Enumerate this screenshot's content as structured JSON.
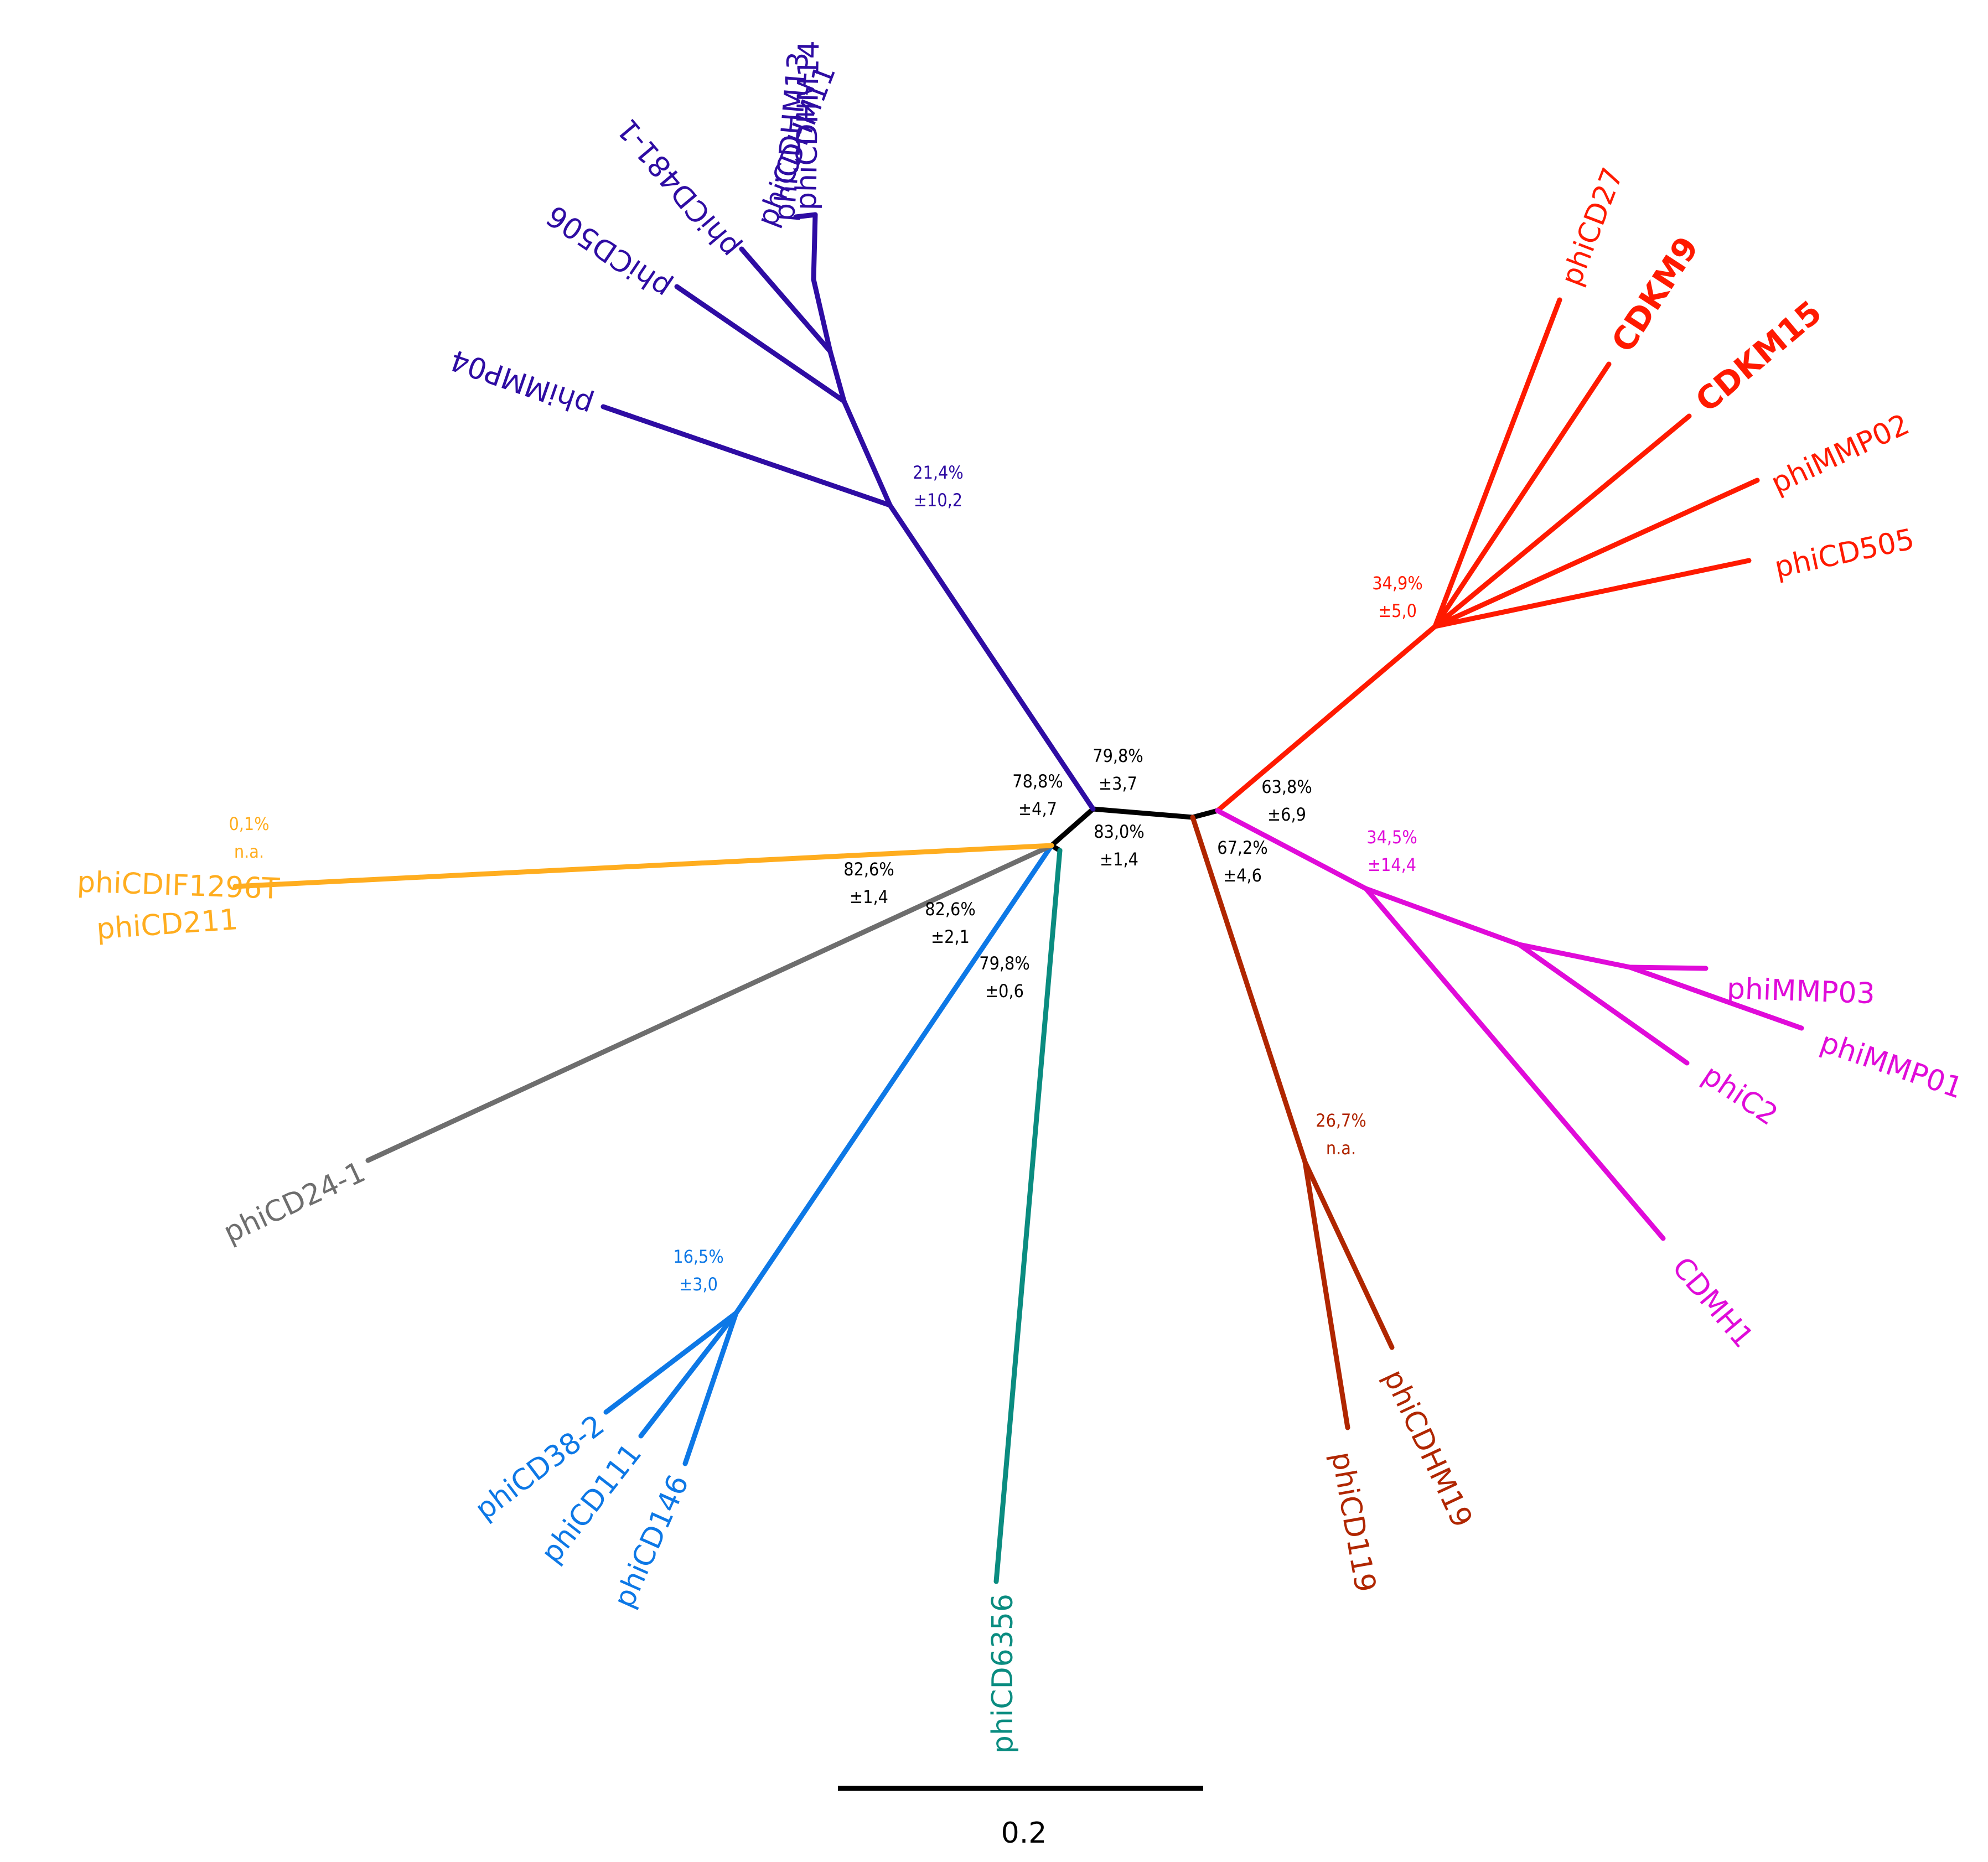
{
  "colors": {
    "backbone": "#000000",
    "purple": "#2e0ca3",
    "red": "#ff1a00",
    "magenta": "#e00bd9",
    "brown": "#b02600",
    "teal": "#0a8c80",
    "blue": "#0d78e6",
    "gray": "#6e6e6e",
    "orange": "#ffad1f"
  },
  "taxa": {
    "phiCDHM14": "phiCDHM14",
    "phiCDHM13": "phiCDHM13",
    "phiCDHM11": "phiCDHM11",
    "phiCD481_1": "phiCD481-1",
    "phiCD506": "phiCD506",
    "phiMMP04": "phiMMP04",
    "phiCD27": "phiCD27",
    "CDKM9": "CDKM9",
    "CDKM15": "CDKM15",
    "phiMMP02": "phiMMP02",
    "phiCD505": "phiCD505",
    "phiMMP03": "phiMMP03",
    "phiMMP01": "phiMMP01",
    "phiC2": "phiC2",
    "CDMH1": "CDMH1",
    "phiCDHM19": "phiCDHM19",
    "phiCD119": "phiCD119",
    "phiCD6356": "phiCD6356",
    "phiCD38_2": "phiCD38-2",
    "phiCD111": "phiCD111",
    "phiCD146": "phiCD146",
    "phiCD24_1": "phiCD24-1",
    "phiCDIF1296T": "phiCDIF1296T",
    "phiCD211": "phiCD211"
  },
  "annotations": {
    "purple": [
      "21,4%",
      "±10,2"
    ],
    "red": [
      "34,9%",
      "±5,0"
    ],
    "magenta": [
      "34,5%",
      "±14,4"
    ],
    "brown": [
      "26,7%",
      "n.a."
    ],
    "blue": [
      "16,5%",
      "±3,0"
    ],
    "orange": [
      "0,1%",
      "n.a."
    ],
    "core_79_8_a": [
      "79,8%",
      "±3,7"
    ],
    "core_78_8": [
      "78,8%",
      "±4,7"
    ],
    "core_83_0": [
      "83,0%",
      "±1,4"
    ],
    "core_63_8": [
      "63,8%",
      "±6,9"
    ],
    "core_67_2": [
      "67,2%",
      "±4,6"
    ],
    "core_82_6_a": [
      "82,6%",
      "±1,4"
    ],
    "core_82_6_b": [
      "82,6%",
      "±2,1"
    ],
    "core_79_8_b": [
      "79,8%",
      "±0,6"
    ]
  },
  "scale_bar": {
    "label": "0.2"
  }
}
